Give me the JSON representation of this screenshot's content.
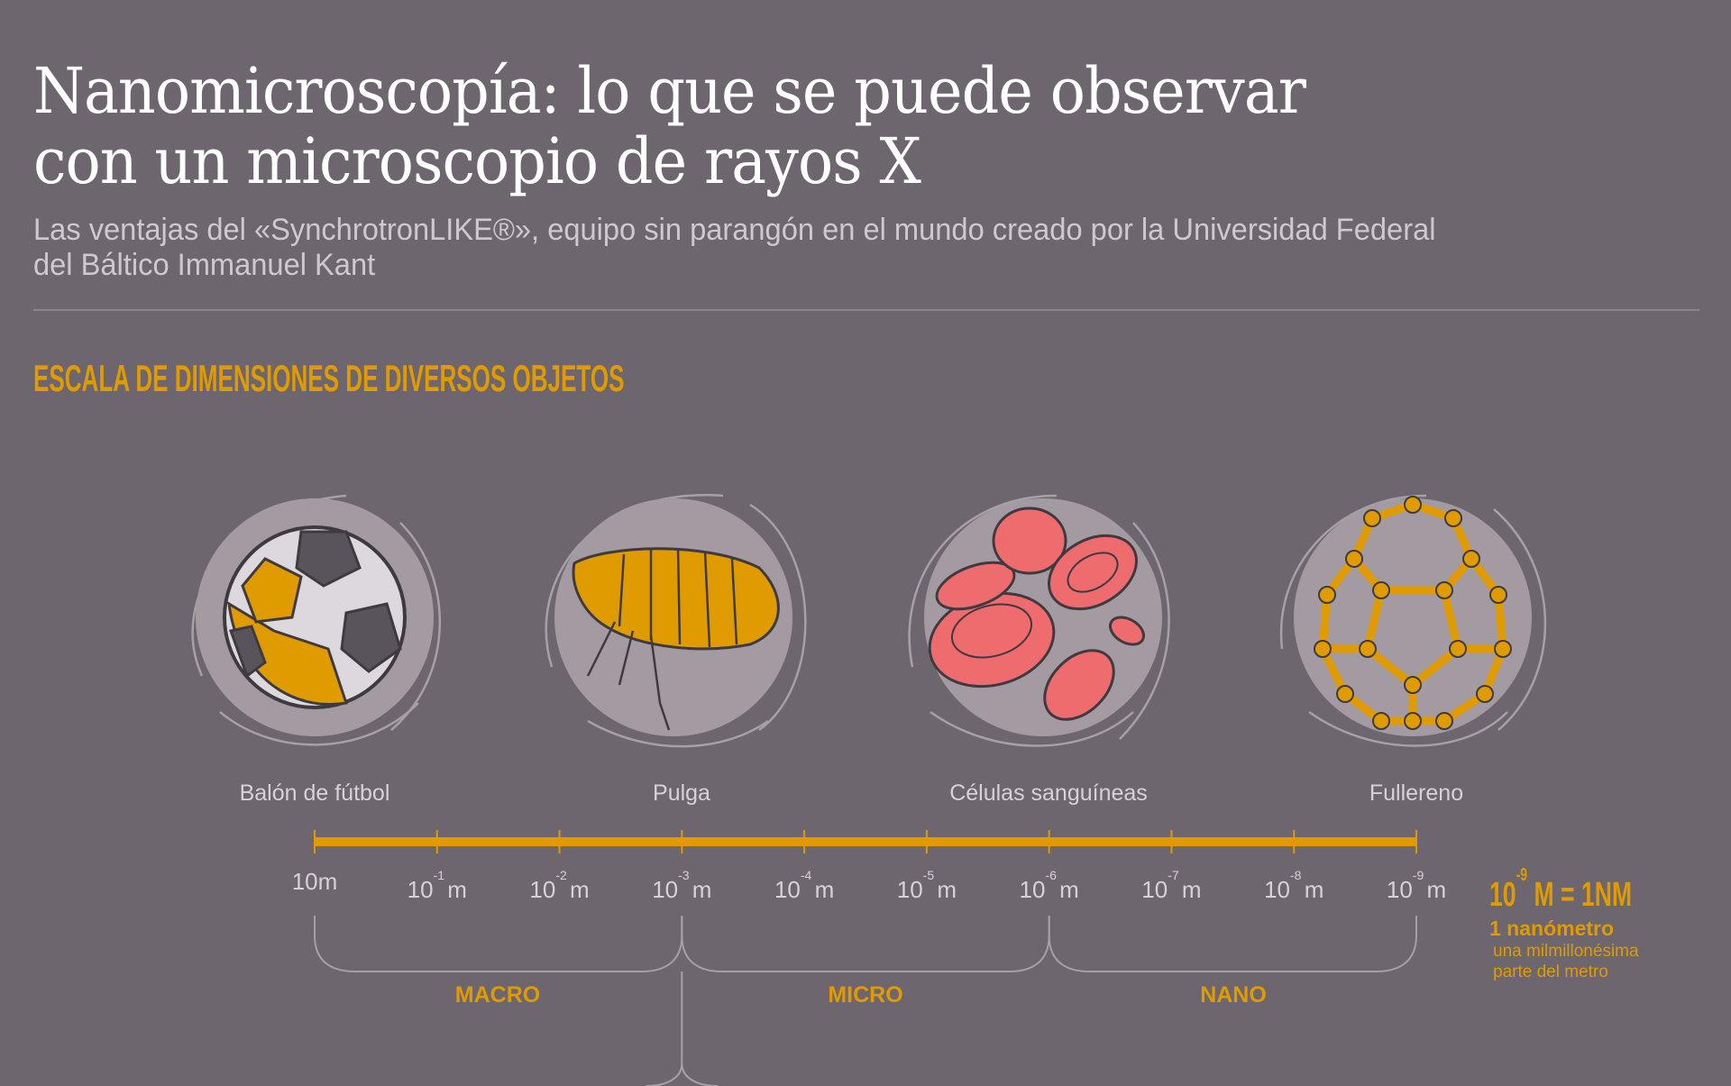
{
  "header": {
    "title_line1": "Nanomicroscopía: lo que se puede observar",
    "title_line2": "con un microscopio de rayos X",
    "subtitle_line1": "Las ventajas del «SynchrotronLIKE®», equipo sin parangón en el mundo creado por la Universidad Federal",
    "subtitle_line2": "del Báltico Immanuel Kant"
  },
  "section_title": "ESCALA DE DIMENSIONES DE DIVERSOS OBJETOS",
  "objects": [
    {
      "label": "Balón de fútbol",
      "icon": "soccer-ball-icon"
    },
    {
      "label": "Pulga",
      "icon": "flea-icon"
    },
    {
      "label": "Células sanguíneas",
      "icon": "blood-cells-icon"
    },
    {
      "label": "Fullereno",
      "icon": "fullerene-icon"
    }
  ],
  "scale": {
    "ticks": [
      {
        "base": "10m",
        "exp": ""
      },
      {
        "base": "10",
        "exp": "-1",
        "unit": "m"
      },
      {
        "base": "10",
        "exp": "-2",
        "unit": "m"
      },
      {
        "base": "10",
        "exp": "-3",
        "unit": "m"
      },
      {
        "base": "10",
        "exp": "-4",
        "unit": "m"
      },
      {
        "base": "10",
        "exp": "-5",
        "unit": "m"
      },
      {
        "base": "10",
        "exp": "-6",
        "unit": "m"
      },
      {
        "base": "10",
        "exp": "-7",
        "unit": "m"
      },
      {
        "base": "10",
        "exp": "-8",
        "unit": "m"
      },
      {
        "base": "10",
        "exp": "-9",
        "unit": "m"
      }
    ],
    "ranges": [
      "MACRO",
      "MICRO",
      "NANO"
    ]
  },
  "note": {
    "base": "10",
    "exp": "-9",
    "equation_rest": "M = 1NM",
    "name": "1 nanómetro",
    "desc_line1": "una milmillonésima",
    "desc_line2": "parte del metro"
  },
  "colors": {
    "background": "#6d666e",
    "accent": "#e09b00",
    "circle": "#a39aa2",
    "cells": "#ee6b6e"
  }
}
